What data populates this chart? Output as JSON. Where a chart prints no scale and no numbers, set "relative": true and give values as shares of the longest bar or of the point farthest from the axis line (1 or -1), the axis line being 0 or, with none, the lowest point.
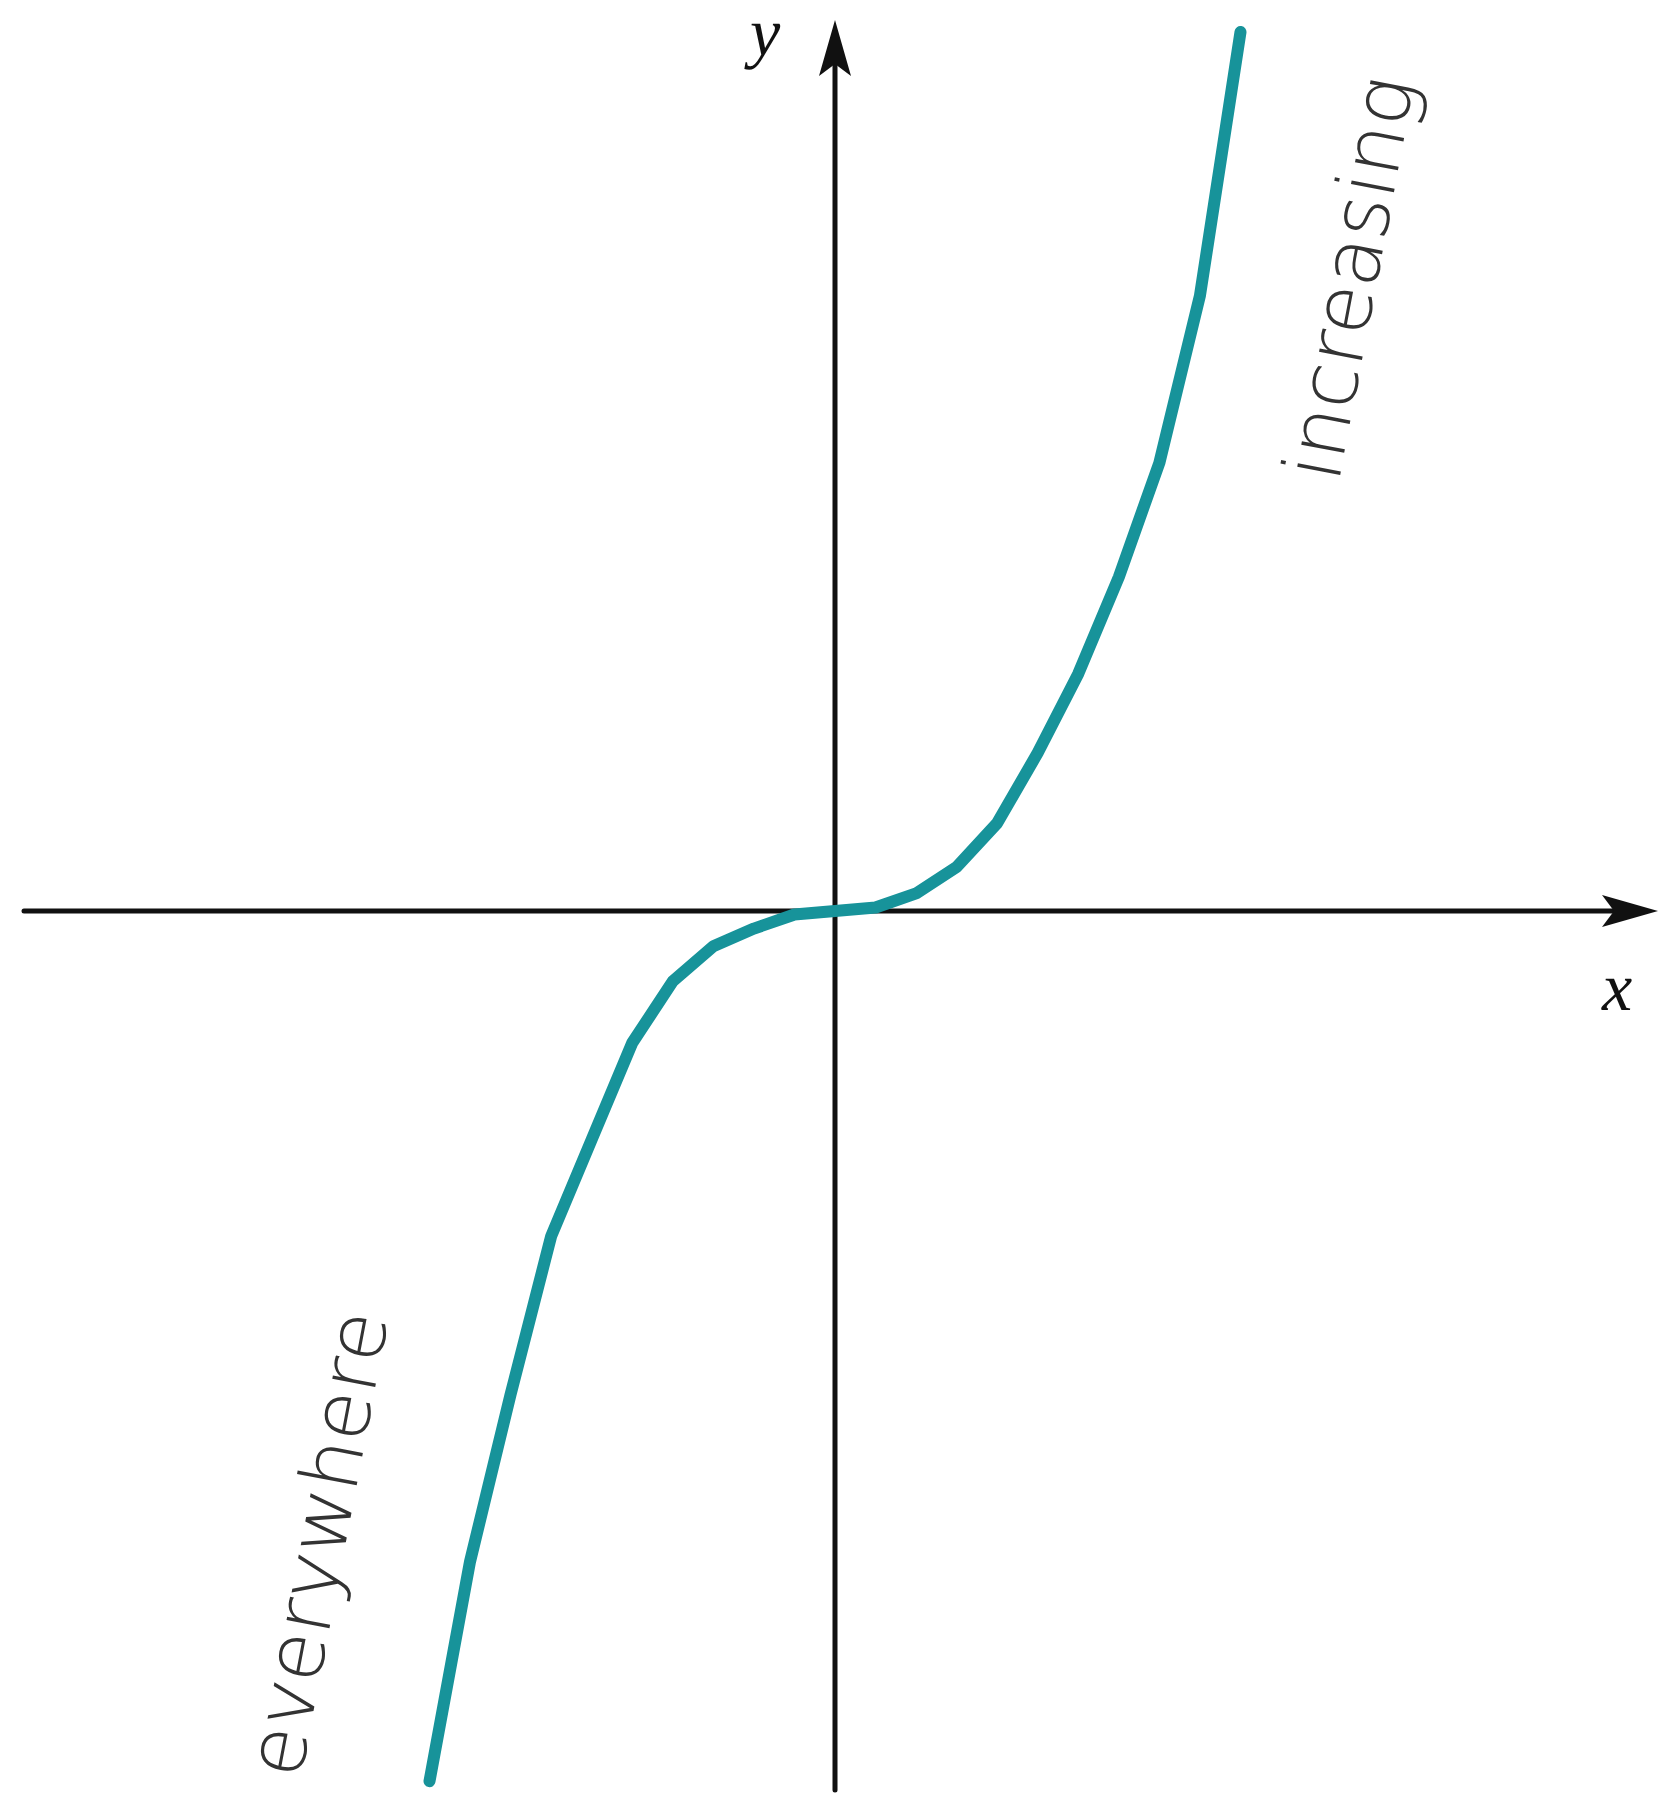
{
  "chart_data": {
    "type": "line",
    "relative": true,
    "xlabel": "x",
    "ylabel": "y",
    "categories": [
      null,
      null,
      null,
      null,
      null,
      null,
      null,
      null,
      null,
      null,
      null,
      null,
      null,
      null,
      null,
      null,
      null,
      null,
      null,
      null,
      null,
      null,
      null,
      null,
      null,
      null,
      null,
      null,
      null,
      null,
      null,
      null,
      null,
      null,
      null,
      null,
      null,
      null,
      null,
      null,
      null
    ],
    "series": [
      {
        "color": "#17939a",
        "values": [
          null,
          null,
          null,
          null,
          null,
          null,
          null,
          null,
          null,
          null,
          -0.99,
          -0.74,
          -0.55,
          -0.37,
          -0.26,
          -0.15,
          -0.08,
          -0.04,
          -0.02,
          -0.004,
          0,
          0.004,
          0.02,
          0.05,
          0.1,
          0.18,
          0.27,
          0.38,
          0.51,
          0.7,
          1.0,
          null,
          null,
          null,
          null,
          null,
          null,
          null,
          null,
          null,
          null
        ]
      }
    ],
    "annotations": [
      "increasing",
      "everywhere"
    ],
    "marker": "none",
    "line_style": "solid"
  }
}
